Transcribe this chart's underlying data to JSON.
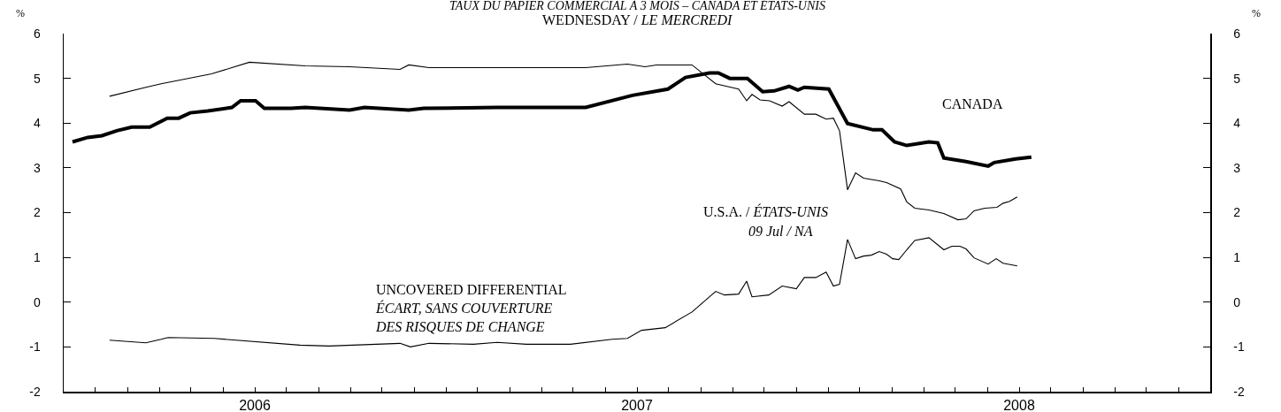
{
  "chart_data": {
    "type": "line",
    "title": "TAUX DU PAPIER COMMERCIAL À 3 MOIS – CANADA ET ÉTATS-UNIS",
    "subtitle": "WEDNESDAY / LE MERCREDI",
    "ylabel": "%",
    "y2label": "%",
    "annotations": [
      "09 Jul / NA"
    ],
    "xlim": [
      2005.5,
      2008.5
    ],
    "xticks": [
      {
        "value": 2005.583,
        "label": null
      },
      {
        "value": 2005.667,
        "label": null
      },
      {
        "value": 2005.75,
        "label": null
      },
      {
        "value": 2005.833,
        "label": null
      },
      {
        "value": 2005.917,
        "label": null
      },
      {
        "value": 2006,
        "label": "2006"
      },
      {
        "value": 2006.083,
        "label": null
      },
      {
        "value": 2006.167,
        "label": null
      },
      {
        "value": 2006.25,
        "label": null
      },
      {
        "value": 2006.333,
        "label": null
      },
      {
        "value": 2006.417,
        "label": null
      },
      {
        "value": 2006.5,
        "label": null
      },
      {
        "value": 2006.583,
        "label": null
      },
      {
        "value": 2006.667,
        "label": null
      },
      {
        "value": 2006.75,
        "label": null
      },
      {
        "value": 2006.833,
        "label": null
      },
      {
        "value": 2006.917,
        "label": null
      },
      {
        "value": 2007,
        "label": "2007"
      },
      {
        "value": 2007.083,
        "label": null
      },
      {
        "value": 2007.167,
        "label": null
      },
      {
        "value": 2007.25,
        "label": null
      },
      {
        "value": 2007.333,
        "label": null
      },
      {
        "value": 2007.417,
        "label": null
      },
      {
        "value": 2007.5,
        "label": null
      },
      {
        "value": 2007.583,
        "label": null
      },
      {
        "value": 2007.667,
        "label": null
      },
      {
        "value": 2007.75,
        "label": null
      },
      {
        "value": 2007.833,
        "label": null
      },
      {
        "value": 2007.917,
        "label": null
      },
      {
        "value": 2008,
        "label": "2008"
      },
      {
        "value": 2008.083,
        "label": null
      },
      {
        "value": 2008.167,
        "label": null
      },
      {
        "value": 2008.25,
        "label": null
      },
      {
        "value": 2008.333,
        "label": null
      },
      {
        "value": 2008.417,
        "label": null
      }
    ],
    "ylim": [
      -2,
      6
    ],
    "yticks": [
      -2,
      -1,
      0,
      1,
      2,
      3,
      4,
      5,
      6
    ],
    "y2lim": [
      -2,
      6
    ],
    "y2ticks": [
      -2,
      -1,
      0,
      1,
      2,
      3,
      4,
      5,
      6
    ],
    "grid": false,
    "legend": false,
    "marker": "none",
    "line_style": "solid",
    "series": [
      {
        "name": "CANADA",
        "color": "#000000",
        "x": [
          2005.523,
          2005.563,
          2005.6,
          2005.639,
          2005.678,
          2005.725,
          2005.771,
          2005.801,
          2005.831,
          2005.877,
          2005.94,
          2005.963,
          2006.002,
          2006.025,
          2006.095,
          2006.132,
          2006.248,
          2006.287,
          2006.403,
          2006.442,
          2006.634,
          2006.866,
          2006.988,
          2007.081,
          2007.127,
          2007.19,
          2007.213,
          2007.243,
          2007.289,
          2007.329,
          2007.359,
          2007.398,
          2007.421,
          2007.438,
          2007.502,
          2007.551,
          2007.618,
          2007.641,
          2007.674,
          2007.706,
          2007.764,
          2007.787,
          2007.803,
          2007.861,
          2007.919,
          2007.935,
          2007.991,
          2008.032
        ],
        "values": [
          3.58,
          3.68,
          3.72,
          3.83,
          3.91,
          3.91,
          4.11,
          4.11,
          4.23,
          4.27,
          4.35,
          4.5,
          4.5,
          4.33,
          4.33,
          4.35,
          4.29,
          4.35,
          4.29,
          4.33,
          4.35,
          4.35,
          4.62,
          4.76,
          5.02,
          5.12,
          5.12,
          5.0,
          5.0,
          4.7,
          4.72,
          4.82,
          4.74,
          4.8,
          4.76,
          3.99,
          3.85,
          3.85,
          3.58,
          3.5,
          3.58,
          3.56,
          3.22,
          3.14,
          3.04,
          3.12,
          3.2,
          3.24
        ]
      },
      {
        "name": "U.S.A. / ÉTATS-UNIS",
        "color": "#000000",
        "x": [
          2005.62,
          2005.715,
          2005.755,
          2005.887,
          2005.986,
          2006.132,
          2006.248,
          2006.38,
          2006.403,
          2006.456,
          2006.634,
          2006.866,
          2006.975,
          2007.021,
          2007.051,
          2007.144,
          2007.206,
          2007.236,
          2007.266,
          2007.287,
          2007.301,
          2007.322,
          2007.347,
          2007.38,
          2007.398,
          2007.438,
          2007.468,
          2007.495,
          2007.514,
          2007.53,
          2007.551,
          2007.572,
          2007.593,
          2007.634,
          2007.653,
          2007.69,
          2007.706,
          2007.727,
          2007.764,
          2007.803,
          2007.84,
          2007.861,
          2007.882,
          2007.91,
          2007.942,
          2007.958,
          2007.975,
          2007.995
        ],
        "values": [
          4.6,
          4.8,
          4.88,
          5.1,
          5.36,
          5.28,
          5.26,
          5.2,
          5.3,
          5.24,
          5.24,
          5.24,
          5.32,
          5.26,
          5.3,
          5.3,
          4.88,
          4.82,
          4.76,
          4.5,
          4.64,
          4.52,
          4.5,
          4.38,
          4.48,
          4.2,
          4.2,
          4.09,
          4.11,
          3.83,
          2.51,
          2.89,
          2.77,
          2.71,
          2.67,
          2.53,
          2.24,
          2.1,
          2.06,
          1.98,
          1.84,
          1.86,
          2.04,
          2.1,
          2.12,
          2.21,
          2.25,
          2.35
        ]
      },
      {
        "name": "UNCOVERED DIFFERENTIAL\nÉCART, SANS COUVERTURE\nDES RISQUES DE CHANGE",
        "color": "#000000",
        "x": [
          2005.62,
          2005.715,
          2005.755,
          2005.773,
          2005.894,
          2006.118,
          2006.194,
          2006.38,
          2006.407,
          2006.456,
          2006.572,
          2006.634,
          2006.711,
          2006.826,
          2006.935,
          2006.975,
          2007.012,
          2007.074,
          2007.144,
          2007.206,
          2007.229,
          2007.266,
          2007.287,
          2007.301,
          2007.345,
          2007.38,
          2007.417,
          2007.438,
          2007.468,
          2007.495,
          2007.514,
          2007.53,
          2007.551,
          2007.572,
          2007.593,
          2007.613,
          2007.634,
          2007.653,
          2007.669,
          2007.685,
          2007.706,
          2007.727,
          2007.764,
          2007.803,
          2007.824,
          2007.845,
          2007.861,
          2007.882,
          2007.919,
          2007.94,
          2007.958,
          2007.995
        ],
        "values": [
          -0.85,
          -0.91,
          -0.83,
          -0.79,
          -0.81,
          -0.96,
          -0.98,
          -0.92,
          -1.0,
          -0.92,
          -0.94,
          -0.9,
          -0.94,
          -0.94,
          -0.83,
          -0.81,
          -0.63,
          -0.57,
          -0.22,
          0.24,
          0.16,
          0.18,
          0.47,
          0.12,
          0.16,
          0.36,
          0.3,
          0.55,
          0.55,
          0.67,
          0.36,
          0.4,
          1.4,
          0.97,
          1.03,
          1.05,
          1.13,
          1.07,
          0.97,
          0.95,
          1.17,
          1.38,
          1.44,
          1.17,
          1.25,
          1.25,
          1.19,
          0.99,
          0.85,
          0.97,
          0.87,
          0.81
        ]
      }
    ]
  }
}
